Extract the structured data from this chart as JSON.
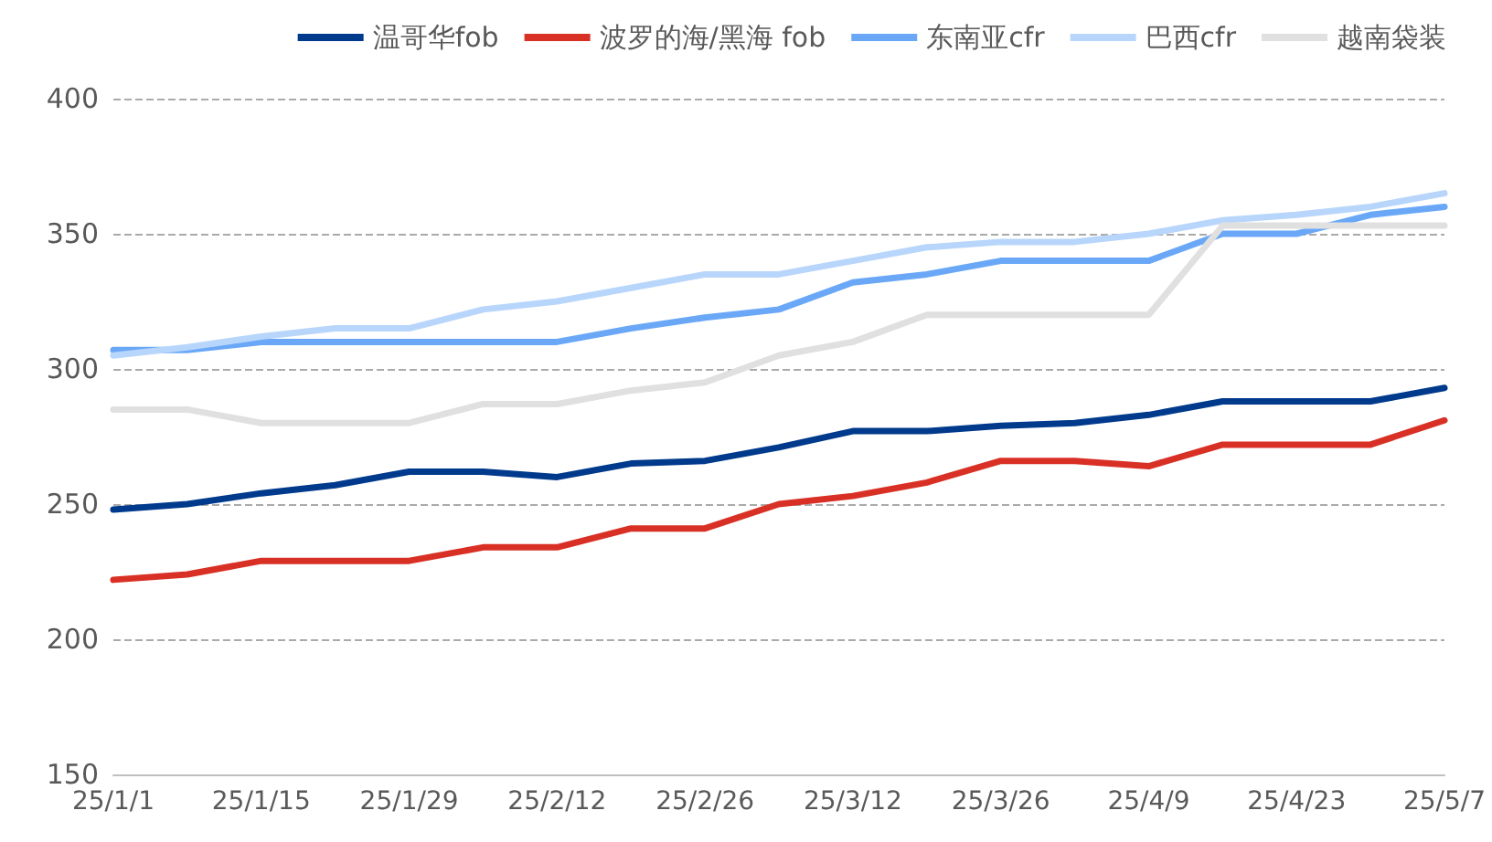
{
  "chart_data": {
    "type": "line",
    "categories": [
      "25/1/1",
      null,
      "25/1/15",
      null,
      "25/1/29",
      null,
      "25/2/12",
      null,
      "25/2/26",
      null,
      "25/3/12",
      null,
      "25/3/26",
      null,
      "25/4/9",
      null,
      "25/4/23",
      null,
      "25/5/7"
    ],
    "series": [
      {
        "name": "温哥华fob",
        "color": "#003a8c",
        "values": [
          248,
          250,
          254,
          257,
          262,
          262,
          260,
          265,
          266,
          271,
          277,
          277,
          279,
          280,
          283,
          288,
          288,
          288,
          293
        ]
      },
      {
        "name": "波罗的海/黑海 fob",
        "color": "#d93025",
        "values": [
          222,
          224,
          229,
          229,
          229,
          234,
          234,
          241,
          241,
          250,
          253,
          258,
          266,
          266,
          264,
          272,
          272,
          272,
          281
        ]
      },
      {
        "name": "东南亚cfr",
        "color": "#6aa8f7",
        "values": [
          307,
          307,
          310,
          310,
          310,
          310,
          310,
          315,
          319,
          322,
          332,
          335,
          340,
          340,
          340,
          350,
          350,
          357,
          360
        ]
      },
      {
        "name": "巴西cfr",
        "color": "#b8d6fb",
        "values": [
          305,
          308,
          312,
          315,
          315,
          322,
          325,
          330,
          335,
          335,
          340,
          345,
          347,
          347,
          350,
          355,
          357,
          360,
          365
        ]
      },
      {
        "name": "越南袋装",
        "color": "#e0e0e0",
        "values": [
          285,
          285,
          280,
          280,
          280,
          287,
          287,
          292,
          295,
          305,
          310,
          320,
          320,
          320,
          320,
          353,
          353,
          353,
          353
        ]
      }
    ],
    "ylim": [
      150,
      400
    ],
    "yticks": [
      150,
      200,
      250,
      300,
      350,
      400
    ],
    "grid": "y",
    "legend": "top",
    "marker": "none",
    "line_style": "solid"
  }
}
